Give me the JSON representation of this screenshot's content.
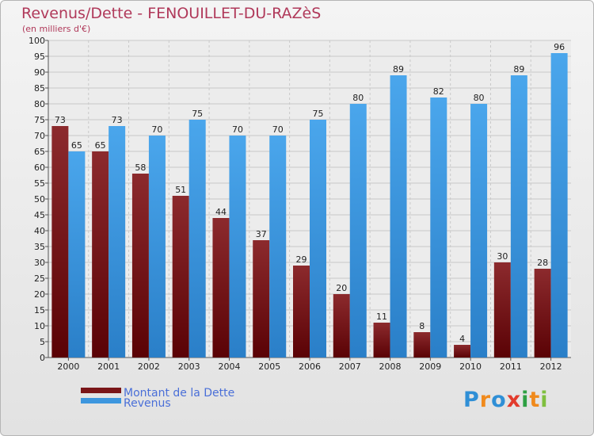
{
  "chart_data": {
    "type": "bar",
    "title": "Revenus/Dette - FENOUILLET-DU-RAZèS",
    "subtitle": "(en milliers d'€)",
    "categories": [
      "2000",
      "2001",
      "2002",
      "2003",
      "2004",
      "2005",
      "2006",
      "2007",
      "2008",
      "2009",
      "2010",
      "2011",
      "2012"
    ],
    "series": [
      {
        "name": "Montant de la Dette",
        "values": [
          73,
          65,
          58,
          51,
          44,
          37,
          29,
          20,
          11,
          8,
          4,
          30,
          28
        ],
        "color": "#7a1518"
      },
      {
        "name": "Revenus",
        "values": [
          65,
          73,
          70,
          75,
          70,
          70,
          75,
          80,
          89,
          82,
          80,
          89,
          96
        ],
        "color": "#3d96de"
      }
    ],
    "ylim": [
      0,
      100
    ],
    "yticks": [
      0,
      5,
      10,
      15,
      20,
      25,
      30,
      35,
      40,
      45,
      50,
      55,
      60,
      65,
      70,
      75,
      80,
      85,
      90,
      95,
      100
    ],
    "grid": true,
    "legend": "bottom-left"
  },
  "logo": {
    "letters": [
      {
        "ch": "P",
        "color": "#2f8fd6"
      },
      {
        "ch": "r",
        "color": "#f08a1c"
      },
      {
        "ch": "o",
        "color": "#2f8fd6"
      },
      {
        "ch": "x",
        "color": "#e23b2c"
      },
      {
        "ch": "i",
        "color": "#2ea043"
      },
      {
        "ch": "t",
        "color": "#f08a1c"
      },
      {
        "ch": "i",
        "color": "#7fbf3f"
      }
    ]
  }
}
